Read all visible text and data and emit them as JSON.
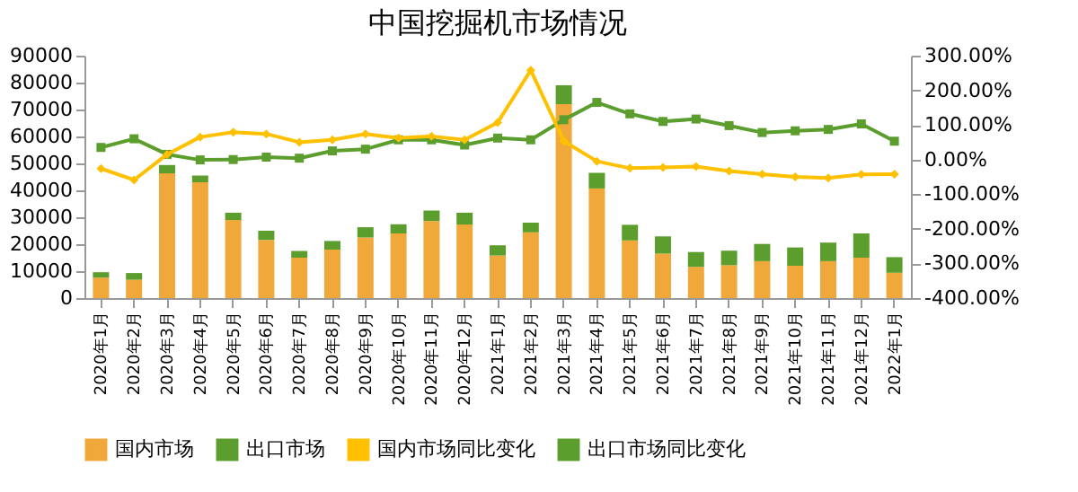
{
  "chart_data": {
    "type": "bar",
    "title": "中国挖掘机市场情况",
    "categories": [
      "2020年1月",
      "2020年2月",
      "2020年3月",
      "2020年4月",
      "2020年5月",
      "2020年6月",
      "2020年7月",
      "2020年8月",
      "2020年9月",
      "2020年10月",
      "2020年11月",
      "2020年12月",
      "2021年1月",
      "2021年2月",
      "2021年3月",
      "2021年4月",
      "2021年5月",
      "2021年6月",
      "2021年7月",
      "2021年8月",
      "2021年9月",
      "2021年10月",
      "2021年11月",
      "2021年12月",
      "2022年1月"
    ],
    "stacked": true,
    "series": [
      {
        "name": "国内市场",
        "color": "#f0a83a",
        "values": [
          7600,
          6800,
          46300,
          43000,
          29000,
          21600,
          15000,
          18000,
          22500,
          24000,
          28600,
          27300,
          15800,
          24400,
          72000,
          40700,
          21400,
          16500,
          11600,
          12200,
          13700,
          12000,
          13700,
          15000,
          9400
        ]
      },
      {
        "name": "出口市场",
        "color": "#5c9e2e",
        "values": [
          2000,
          2500,
          3100,
          2500,
          2700,
          3400,
          2500,
          3200,
          3800,
          3400,
          3900,
          4400,
          3800,
          3600,
          7000,
          5800,
          5800,
          6400,
          5500,
          5400,
          6400,
          6800,
          6900,
          9000,
          5800
        ]
      },
      {
        "name": "国内市场同比变化",
        "type": "line",
        "axis": "y2",
        "color": "#ffc000",
        "marker": "diamond",
        "values": [
          -26,
          -59,
          15,
          65,
          79,
          74,
          50,
          57,
          74,
          62,
          67,
          57,
          107,
          258,
          53,
          -5,
          -25,
          -23,
          -20,
          -33,
          -42,
          -50,
          -53,
          -43,
          -42
        ]
      },
      {
        "name": "出口市场同比变化",
        "type": "line",
        "axis": "y2",
        "color": "#5c9e2e",
        "marker": "square",
        "values": [
          35,
          60,
          15,
          -1,
          0,
          7,
          4,
          25,
          30,
          57,
          57,
          42,
          62,
          57,
          115,
          165,
          132,
          110,
          117,
          98,
          78,
          83,
          87,
          103,
          53
        ]
      }
    ],
    "ylim": [
      0,
      90000
    ],
    "yticks": [
      0,
      10000,
      20000,
      30000,
      40000,
      50000,
      60000,
      70000,
      80000,
      90000
    ],
    "y2lim": [
      -400,
      300
    ],
    "y2ticks": [
      {
        "value": -400,
        "label": "-400.00%"
      },
      {
        "value": -300,
        "label": "-300.00%"
      },
      {
        "value": -200,
        "label": "-200.00%"
      },
      {
        "value": -100,
        "label": "-100.00%"
      },
      {
        "value": 0,
        "label": "0.00%"
      },
      {
        "value": 100,
        "label": "100.00%"
      },
      {
        "value": 200,
        "label": "200.00%"
      },
      {
        "value": 300,
        "label": "300.00%"
      }
    ],
    "grid": false,
    "legend": "bottom"
  }
}
